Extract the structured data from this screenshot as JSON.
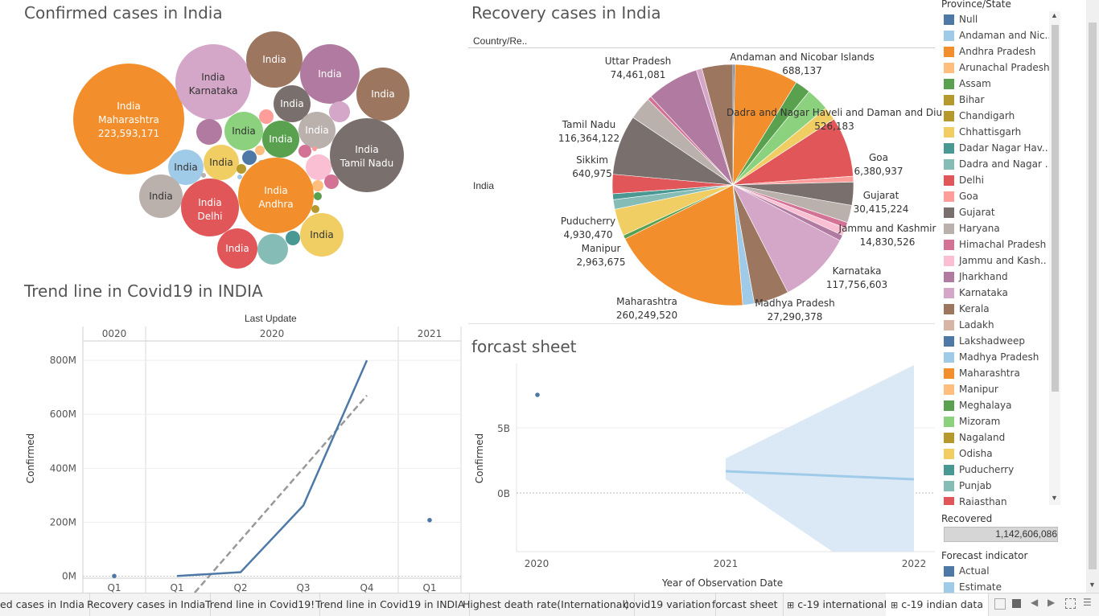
{
  "titles": {
    "confirmed": "Confirmed cases in India",
    "recovery": "Recovery cases in India",
    "trend": "Trend line in Covid19 in INDIA",
    "forecast": "forcast sheet"
  },
  "bubble": {
    "big_labels": {
      "maharashtra": [
        "India",
        "Maharashtra",
        "223,593,171"
      ],
      "karnataka": [
        "India",
        "Karnataka"
      ],
      "tamil_nadu": [
        "India",
        "Tamil Nadu"
      ],
      "andhra": [
        "India",
        "Andhra"
      ],
      "delhi": [
        "India",
        "Delhi"
      ]
    },
    "small_label": "India"
  },
  "pie": {
    "header": "Country/Re..",
    "row_label": "India",
    "labels": [
      {
        "name": "Uttar Pradesh",
        "value": "74,461,081"
      },
      {
        "name": "Andaman and Nicobar Islands",
        "value": "688,137"
      },
      {
        "name": "Dadra and Nagar Haveli and Daman and Diu",
        "value": "526,183"
      },
      {
        "name": "Tamil Nadu",
        "value": "116,364,122"
      },
      {
        "name": "Goa",
        "value": "6,380,937"
      },
      {
        "name": "Sikkim",
        "value": "640,975"
      },
      {
        "name": "Gujarat",
        "value": "30,415,224"
      },
      {
        "name": "Jammu and Kashmir",
        "value": "14,830,526"
      },
      {
        "name": "Puducherry",
        "value": "4,930,470"
      },
      {
        "name": "Manipur",
        "value": "2,963,675"
      },
      {
        "name": "Karnataka",
        "value": "117,756,603"
      },
      {
        "name": "Maharashtra",
        "value": "260,249,520"
      },
      {
        "name": "Madhya Pradesh",
        "value": "27,290,378"
      }
    ]
  },
  "chart_data": [
    {
      "type": "line",
      "title": "Trend line in Covid19 in INDIA",
      "column_header": "Last Update",
      "years": [
        "0020",
        "2020",
        "2021"
      ],
      "quarters": [
        "Q1",
        "Q1",
        "Q2",
        "Q3",
        "Q4",
        "Q1"
      ],
      "ylabel": "Confirmed",
      "yticks": [
        "800M",
        "600M",
        "400M",
        "200M",
        "0M"
      ],
      "ylim": [
        -40,
        860
      ],
      "series": [
        {
          "values": [
            1,
            1,
            15,
            262,
            800,
            208
          ]
        }
      ],
      "trend_line": "dashed, linear"
    },
    {
      "type": "line",
      "title": "forcast sheet",
      "ylabel": "Confirmed",
      "xlabel": "Year of Observation Date",
      "xticks": [
        "2020",
        "2021",
        "2022"
      ],
      "yticks": [
        "5B",
        "0B"
      ],
      "actual_point": {
        "x": "2020",
        "y": 7.5
      },
      "estimate": {
        "x": [
          "2021",
          "2022"
        ],
        "y": [
          1.7,
          1.1
        ]
      },
      "band": "prediction interval"
    }
  ],
  "legend": {
    "title": "Province/State",
    "items": [
      {
        "label": "Null",
        "color": "#4e79a7"
      },
      {
        "label": "Andaman and Nic..",
        "color": "#a0cbe8"
      },
      {
        "label": "Andhra Pradesh",
        "color": "#f28e2b"
      },
      {
        "label": "Arunachal Pradesh",
        "color": "#ffbe7d"
      },
      {
        "label": "Assam",
        "color": "#59a14f"
      },
      {
        "label": "Bihar",
        "color": "#b6992d"
      },
      {
        "label": "Chandigarh",
        "color": "#b6992d"
      },
      {
        "label": "Chhattisgarh",
        "color": "#f1ce63"
      },
      {
        "label": "Dadar Nagar Hav..",
        "color": "#499894"
      },
      {
        "label": "Dadra and Nagar ..",
        "color": "#86bcb6"
      },
      {
        "label": "Delhi",
        "color": "#e15759"
      },
      {
        "label": "Goa",
        "color": "#ff9d9a"
      },
      {
        "label": "Gujarat",
        "color": "#79706e"
      },
      {
        "label": "Haryana",
        "color": "#bab0ac"
      },
      {
        "label": "Himachal Pradesh",
        "color": "#d37295"
      },
      {
        "label": "Jammu and Kash..",
        "color": "#fabfd2"
      },
      {
        "label": "Jharkhand",
        "color": "#b07aa1"
      },
      {
        "label": "Karnataka",
        "color": "#d4a6c8"
      },
      {
        "label": "Kerala",
        "color": "#9d7660"
      },
      {
        "label": "Ladakh",
        "color": "#d7b5a6"
      },
      {
        "label": "Lakshadweep",
        "color": "#4e79a7"
      },
      {
        "label": "Madhya Pradesh",
        "color": "#a0cbe8"
      },
      {
        "label": "Maharashtra",
        "color": "#f28e2b"
      },
      {
        "label": "Manipur",
        "color": "#ffbe7d"
      },
      {
        "label": "Meghalaya",
        "color": "#59a14f"
      },
      {
        "label": "Mizoram",
        "color": "#8cd17d"
      },
      {
        "label": "Nagaland",
        "color": "#b6992d"
      },
      {
        "label": "Odisha",
        "color": "#f1ce63"
      },
      {
        "label": "Puducherry",
        "color": "#499894"
      },
      {
        "label": "Punjab",
        "color": "#86bcb6"
      },
      {
        "label": "Rajasthan",
        "color": "#e15759"
      }
    ],
    "recovered_title": "Recovered",
    "recovered_value": "1,142,606,086",
    "forecast_title": "Forecast indicator",
    "forecast_items": [
      {
        "label": "Actual",
        "color": "#4e79a7"
      },
      {
        "label": "Estimate",
        "color": "#a0cbe8"
      }
    ]
  },
  "tabs": [
    "ed cases in India",
    "Recovery cases in India",
    "Trend line in Covid19!",
    "Trend line in Covid19 in INDIA",
    "Highest death rate(International)",
    "covid19 variation",
    "forcast sheet",
    "c-19 international",
    "c-19 indian data"
  ],
  "colors": {
    "line": "#4e79a7",
    "trend": "#999999",
    "forecast_band": "#dbe9f6",
    "forecast_line": "#a0cbe8"
  }
}
